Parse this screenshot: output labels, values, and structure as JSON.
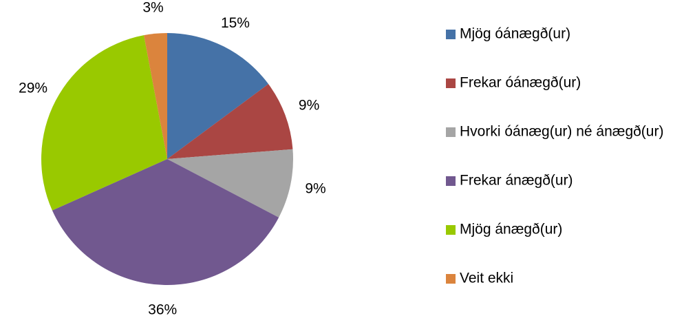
{
  "chart_data": {
    "type": "pie",
    "categories": [
      "Mjög óánægð(ur)",
      "Frekar óánægð(ur)",
      "Hvorki óánæg(ur) né ánægð(ur)",
      "Frekar ánægð(ur)",
      "Mjög ánægð(ur)",
      "Veit ekki"
    ],
    "values": [
      15,
      9,
      9,
      36,
      29,
      3
    ],
    "value_labels": [
      "15%",
      "9%",
      "9%",
      "36%",
      "29%",
      "3%"
    ],
    "colors": [
      "#4572a7",
      "#aa4643",
      "#a5a5a5",
      "#71588f",
      "#99c900",
      "#db843d"
    ],
    "legend": "right"
  }
}
